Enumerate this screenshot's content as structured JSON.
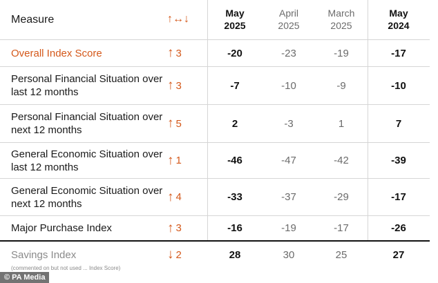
{
  "header": {
    "measure": "Measure",
    "change_symbol": "↑↔↓",
    "columns": [
      {
        "month": "May",
        "year": "2025"
      },
      {
        "month": "April",
        "year": "2025"
      },
      {
        "month": "March",
        "year": "2025"
      },
      {
        "month": "May",
        "year": "2024"
      }
    ]
  },
  "rows": [
    {
      "measure": "Overall Index Score",
      "arrow": "↑",
      "change": "3",
      "values": [
        "-20",
        "-23",
        "-19",
        "-17"
      ]
    },
    {
      "measure": "Personal Financial Situation over last 12 months",
      "arrow": "↑",
      "change": "3",
      "values": [
        "-7",
        "-10",
        "-9",
        "-10"
      ]
    },
    {
      "measure": "Personal Financial Situation over next 12 months",
      "arrow": "↑",
      "change": "5",
      "values": [
        "2",
        "-3",
        "1",
        "7"
      ]
    },
    {
      "measure": "General Economic Situation over last 12 months",
      "arrow": "↑",
      "change": "1",
      "values": [
        "-46",
        "-47",
        "-42",
        "-39"
      ]
    },
    {
      "measure": "General Economic Situation over next 12 months",
      "arrow": "↑",
      "change": "4",
      "values": [
        "-33",
        "-37",
        "-29",
        "-17"
      ]
    },
    {
      "measure": "Major Purchase Index",
      "arrow": "↑",
      "change": "3",
      "values": [
        "-16",
        "-19",
        "-17",
        "-26"
      ]
    },
    {
      "measure": "Savings Index",
      "arrow": "↓",
      "change": "2",
      "values": [
        "28",
        "30",
        "25",
        "27"
      ]
    }
  ],
  "savings_note": "(commented on but not used ... Index Score)",
  "credit": "© PA Media",
  "colors": {
    "accent": "#d4581a",
    "muted": "#8a8a8a"
  }
}
